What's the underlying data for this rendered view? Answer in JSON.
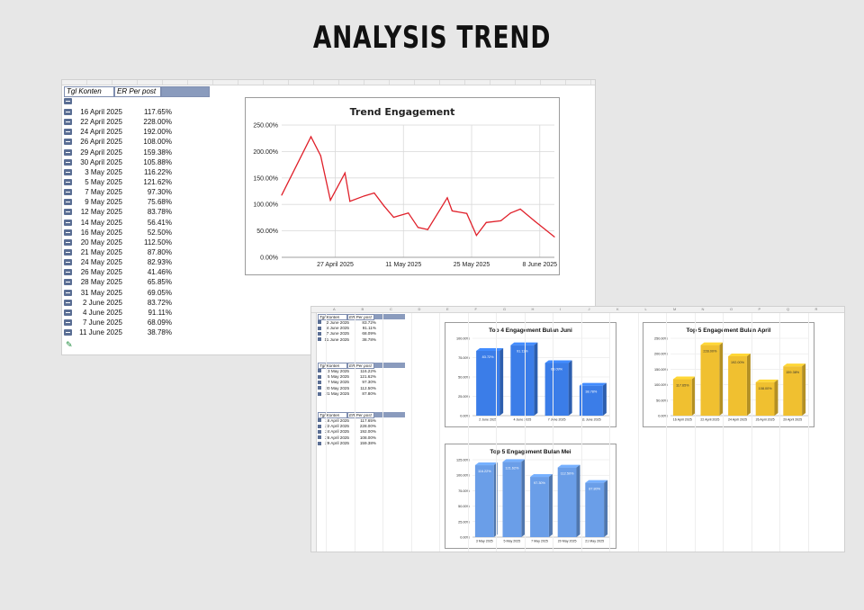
{
  "page_title": "ANALYSIS TREND",
  "sheet1": {
    "header_date": "Tgl Konten",
    "header_er": "ER Per post",
    "rows": [
      {
        "date": "16 April 2025",
        "er": "117.65%"
      },
      {
        "date": "22 April 2025",
        "er": "228.00%"
      },
      {
        "date": "24 April 2025",
        "er": "192.00%"
      },
      {
        "date": "26 April 2025",
        "er": "108.00%"
      },
      {
        "date": "29 April 2025",
        "er": "159.38%"
      },
      {
        "date": "30 April 2025",
        "er": "105.88%"
      },
      {
        "date": "3 May 2025",
        "er": "116.22%"
      },
      {
        "date": "5 May 2025",
        "er": "121.62%"
      },
      {
        "date": "7 May 2025",
        "er": "97.30%"
      },
      {
        "date": "9 May 2025",
        "er": "75.68%"
      },
      {
        "date": "12 May 2025",
        "er": "83.78%"
      },
      {
        "date": "14 May 2025",
        "er": "56.41%"
      },
      {
        "date": "16 May 2025",
        "er": "52.50%"
      },
      {
        "date": "20 May 2025",
        "er": "112.50%"
      },
      {
        "date": "21 May 2025",
        "er": "87.80%"
      },
      {
        "date": "24 May 2025",
        "er": "82.93%"
      },
      {
        "date": "26 May 2025",
        "er": "41.46%"
      },
      {
        "date": "28 May 2025",
        "er": "65.85%"
      },
      {
        "date": "31 May 2025",
        "er": "69.05%"
      },
      {
        "date": "2 June 2025",
        "er": "83.72%"
      },
      {
        "date": "4 June 2025",
        "er": "91.11%"
      },
      {
        "date": "7 June 2025",
        "er": "68.09%"
      },
      {
        "date": "11 June 2025",
        "er": "38.78%"
      }
    ]
  },
  "sheet2": {
    "header_date": "Tgl Konten",
    "header_er": "ER Per post",
    "june_rows": [
      {
        "date": "2 June 2025",
        "er": "83.72%"
      },
      {
        "date": "4 June 2025",
        "er": "91.11%"
      },
      {
        "date": "7 June 2025",
        "er": "68.09%"
      },
      {
        "date": "11 June 2025",
        "er": "38.78%"
      }
    ],
    "may_rows": [
      {
        "date": "3 May 2025",
        "er": "116.22%"
      },
      {
        "date": "5 May 2025",
        "er": "121.62%"
      },
      {
        "date": "7 May 2025",
        "er": "97.30%"
      },
      {
        "date": "20 May 2025",
        "er": "112.50%"
      },
      {
        "date": "21 May 2025",
        "er": "87.80%"
      }
    ],
    "april_rows": [
      {
        "date": "16 April 2025",
        "er": "117.65%"
      },
      {
        "date": "22 April 2025",
        "er": "228.00%"
      },
      {
        "date": "24 April 2025",
        "er": "192.00%"
      },
      {
        "date": "26 April 2025",
        "er": "108.00%"
      },
      {
        "date": "29 April 2025",
        "er": "159.38%"
      }
    ],
    "col_letters": [
      "A",
      "B",
      "C",
      "D",
      "E",
      "F",
      "G",
      "H",
      "I",
      "J",
      "K",
      "L",
      "M",
      "N",
      "O",
      "P",
      "Q",
      "R"
    ]
  },
  "colors": {
    "line": "#e0202a",
    "blue_bar": "#3b7de8",
    "blue_bar_light": "#6a9ee8",
    "yellow_bar": "#f0c030"
  },
  "chart_data": [
    {
      "type": "line",
      "title": "Trend Engagement",
      "x": [
        "16 April 2025",
        "22 April 2025",
        "24 April 2025",
        "26 April 2025",
        "29 April 2025",
        "30 April 2025",
        "3 May 2025",
        "5 May 2025",
        "7 May 2025",
        "9 May 2025",
        "12 May 2025",
        "14 May 2025",
        "16 May 2025",
        "20 May 2025",
        "21 May 2025",
        "24 May 2025",
        "26 May 2025",
        "28 May 2025",
        "31 May 2025",
        "2 June 2025",
        "4 June 2025",
        "7 June 2025",
        "11 June 2025"
      ],
      "x_days": [
        0,
        6,
        8,
        10,
        13,
        14,
        17,
        19,
        21,
        23,
        26,
        28,
        30,
        34,
        35,
        38,
        40,
        42,
        45,
        47,
        49,
        52,
        56
      ],
      "y": [
        117.65,
        228.0,
        192.0,
        108.0,
        159.38,
        105.88,
        116.22,
        121.62,
        97.3,
        75.68,
        83.78,
        56.41,
        52.5,
        112.5,
        87.8,
        82.93,
        41.46,
        65.85,
        69.05,
        83.72,
        91.11,
        68.09,
        38.78
      ],
      "x_ticks": [
        {
          "day": 11,
          "label": "27 April 2025"
        },
        {
          "day": 25,
          "label": "11 May 2025"
        },
        {
          "day": 39,
          "label": "25 May 2025"
        },
        {
          "day": 53,
          "label": "8 June 2025"
        }
      ],
      "y_ticks": [
        "0.00%",
        "50.00%",
        "100.00%",
        "150.00%",
        "200.00%",
        "250.00%"
      ],
      "ylim": [
        0,
        250
      ],
      "grid": true
    },
    {
      "type": "bar",
      "title": "Top 4 Engagement Bulan Juni",
      "categories": [
        "2 June 2025",
        "4 June 2025",
        "7 June 2025",
        "11 June 2025"
      ],
      "values": [
        83.72,
        91.11,
        68.09,
        38.78
      ],
      "labels": [
        "83.72%",
        "91.11%",
        "68.09%",
        "38.78%"
      ],
      "y_ticks": [
        "0.00%",
        "25.00%",
        "50.00%",
        "75.00%",
        "100.00%"
      ],
      "ylim": [
        0,
        100
      ]
    },
    {
      "type": "bar",
      "title": "Top 5 Engagement Bulan April",
      "categories": [
        "16 April 2025",
        "22 April 2025",
        "24 April 2025",
        "26 April 2025",
        "29 April 2025"
      ],
      "values": [
        117.65,
        228.0,
        192.0,
        108.0,
        159.38
      ],
      "labels": [
        "117.65%",
        "228.00%",
        "192.00%",
        "108.00%",
        "159.38%"
      ],
      "y_ticks": [
        "0.00%",
        "50.00%",
        "100.00%",
        "150.00%",
        "200.00%",
        "250.00%"
      ],
      "ylim": [
        0,
        250
      ]
    },
    {
      "type": "bar",
      "title": "Top 5 Engagement Bulan Mei",
      "categories": [
        "3 May 2025",
        "5 May 2025",
        "7 May 2025",
        "20 May 2025",
        "21 May 2025"
      ],
      "values": [
        116.22,
        121.62,
        97.3,
        112.5,
        87.8
      ],
      "labels": [
        "116.22%",
        "121.62%",
        "97.30%",
        "112.50%",
        "87.80%"
      ],
      "y_ticks": [
        "0.00%",
        "25.00%",
        "50.00%",
        "75.00%",
        "100.00%",
        "125.00%"
      ],
      "ylim": [
        0,
        125
      ]
    }
  ]
}
